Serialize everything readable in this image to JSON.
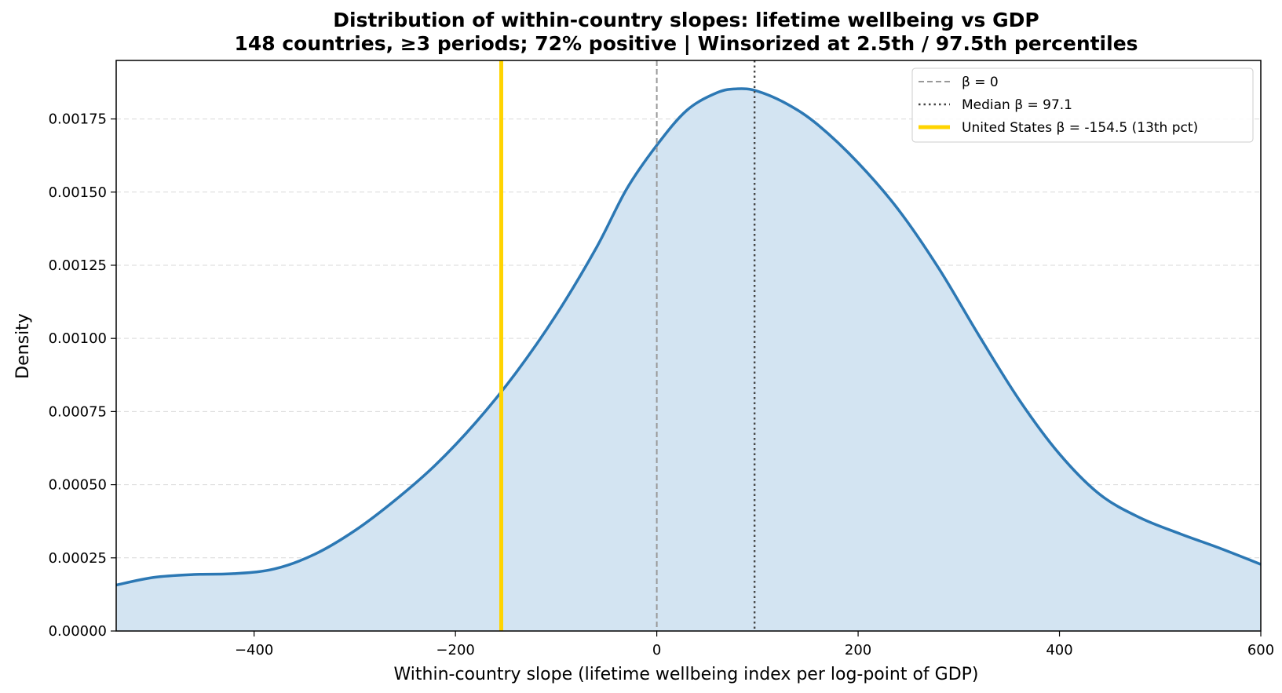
{
  "chart_data": {
    "type": "area",
    "title": "Distribution of within-country slopes: lifetime wellbeing vs GDP",
    "subtitle": "148 countries, ≥3 periods; 72% positive  |  Winsorized at 2.5th / 97.5th percentiles",
    "xlabel": "Within-country slope (lifetime wellbeing index per log-point of GDP)",
    "ylabel": "Density",
    "xlim": [
      -537,
      600
    ],
    "ylim": [
      0,
      0.00195
    ],
    "x_ticks": [
      -400,
      -200,
      0,
      200,
      400,
      600
    ],
    "x_tick_labels": [
      "−400",
      "−200",
      "0",
      "200",
      "400",
      "600"
    ],
    "y_ticks": [
      0,
      0.00025,
      0.0005,
      0.00075,
      0.001,
      0.00125,
      0.0015,
      0.00175
    ],
    "y_tick_labels": [
      "0.00000",
      "0.00025",
      "0.00050",
      "0.00075",
      "0.00100",
      "0.00125",
      "0.00150",
      "0.00175"
    ],
    "grid": "horizontal dashed",
    "legend_position": "top-right",
    "series": [
      {
        "curve_color": "#2c78b4",
        "fill_color": "#d3e4f2",
        "x": [
          -537,
          -500,
          -460,
          -420,
          -380,
          -340,
          -300,
          -260,
          -220,
          -180,
          -140,
          -100,
          -60,
          -30,
          0,
          30,
          60,
          80,
          100,
          130,
          160,
          200,
          240,
          280,
          320,
          360,
          400,
          440,
          480,
          520,
          560,
          600
        ],
        "y": [
          0.000157,
          0.000183,
          0.000193,
          0.000196,
          0.000212,
          0.000262,
          0.000343,
          0.000447,
          0.000567,
          0.000712,
          0.000882,
          0.00108,
          0.00131,
          0.00151,
          0.00166,
          0.00178,
          0.00184,
          0.001853,
          0.001845,
          0.0018,
          0.00173,
          0.0016,
          0.00144,
          0.00124,
          0.00101,
          0.00079,
          0.000605,
          0.000467,
          0.000387,
          0.000332,
          0.000282,
          0.000228
        ]
      }
    ],
    "reference_lines": [
      {
        "x": 0,
        "label": "β = 0",
        "color": "#999999",
        "style": "dashed"
      },
      {
        "x": 97.1,
        "label": "Median  β = 97.1",
        "color": "#444444",
        "style": "dotted"
      },
      {
        "x": -154.5,
        "label": "United States  β = -154.5  (13th pct)",
        "color": "#ffd400",
        "style": "solid"
      }
    ]
  }
}
